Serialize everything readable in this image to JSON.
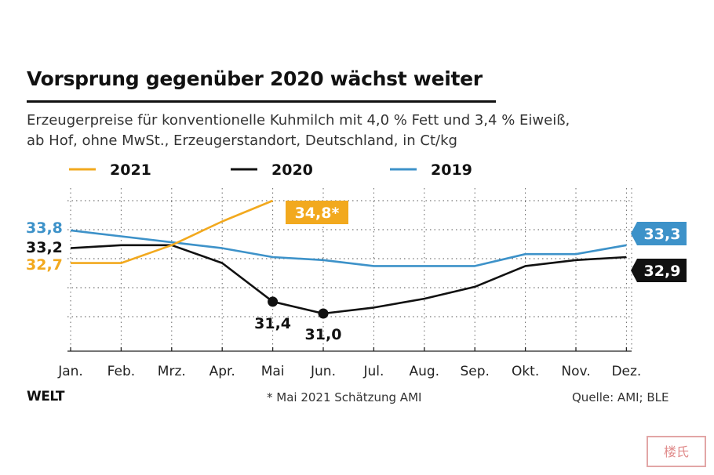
{
  "title": "Vorsprung gegenüber 2020 wächst weiter",
  "subtitle_line1": "Erzeugerpreise für konventionelle Kuhmilch mit 4,0 % Fett und 3,4 % Eiweiß,",
  "subtitle_line2": "ab Hof, ohne MwSt., Erzeugerstandort, Deutschland, in Ct/kg",
  "footer": {
    "logo": "WELT",
    "footnote": "* Mai 2021 Schätzung AMI",
    "source": "Quelle: AMI; BLE"
  },
  "stamp_text": "楼氏",
  "colors": {
    "y2021": "#F2A91E",
    "y2020": "#111111",
    "y2019": "#3D92C9"
  },
  "chart_data": {
    "type": "line",
    "title": "Vorsprung gegenüber 2020 wächst weiter",
    "xlabel": "",
    "ylabel": "Ct/kg",
    "categories": [
      "Jan.",
      "Feb.",
      "Mrz.",
      "Apr.",
      "Mai",
      "Jun.",
      "Jul.",
      "Aug.",
      "Sep.",
      "Okt.",
      "Nov.",
      "Dez."
    ],
    "ylim": [
      30.0,
      35.0
    ],
    "grid": true,
    "legend": "top-left",
    "series": [
      {
        "name": "2021",
        "color": "#F2A91E",
        "values": [
          32.7,
          32.7,
          33.3,
          34.1,
          34.8,
          null,
          null,
          null,
          null,
          null,
          null,
          null
        ]
      },
      {
        "name": "2020",
        "color": "#111111",
        "values": [
          33.2,
          33.3,
          33.3,
          32.7,
          31.4,
          31.0,
          31.2,
          31.5,
          31.9,
          32.6,
          32.8,
          32.9
        ]
      },
      {
        "name": "2019",
        "color": "#3D92C9",
        "values": [
          33.8,
          33.6,
          33.4,
          33.2,
          32.9,
          32.8,
          32.6,
          32.6,
          32.6,
          33.0,
          33.0,
          33.3
        ]
      }
    ],
    "labels": {
      "start_2019": "33,8",
      "start_2020": "33,2",
      "start_2021": "32,7",
      "may_2021": "34,8*",
      "may_2020": "31,4",
      "jun_2020": "31,0",
      "end_2019": "33,3",
      "end_2020": "32,9"
    }
  }
}
